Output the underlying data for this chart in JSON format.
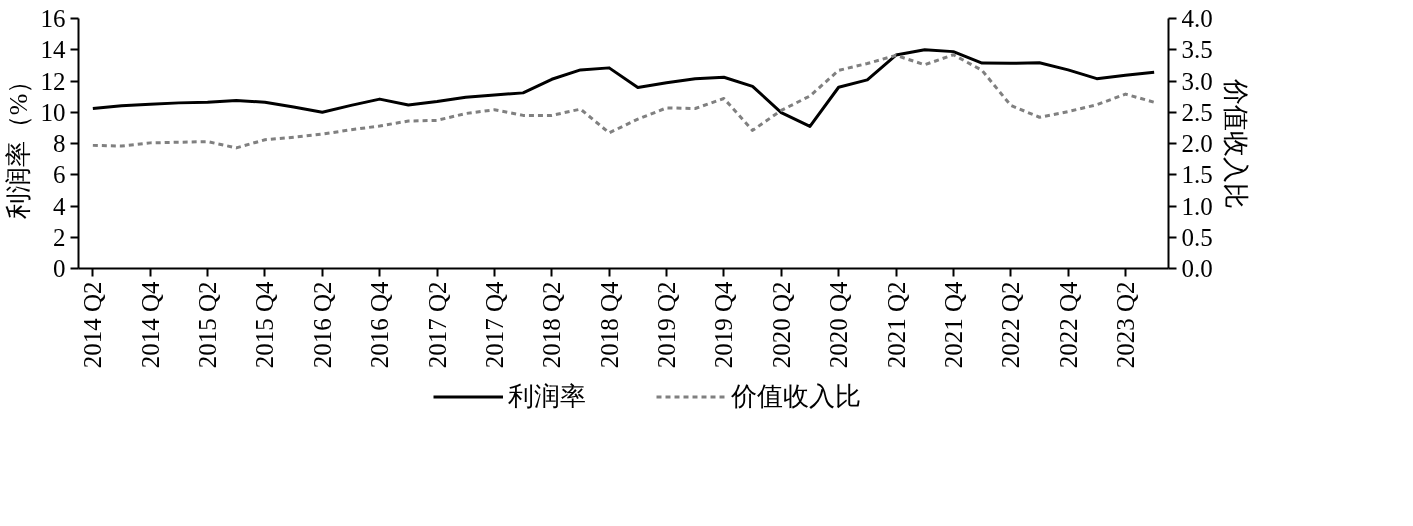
{
  "chart_data": {
    "type": "line",
    "ylabel": "利润率（%）",
    "y2label": "价值收入比",
    "categories": [
      "2014 Q2",
      null,
      "2014 Q4",
      null,
      "2015 Q2",
      null,
      "2015 Q4",
      null,
      "2016 Q2",
      null,
      "2016 Q4",
      null,
      "2017 Q2",
      null,
      "2017 Q4",
      null,
      "2018 Q2",
      null,
      "2018 Q4",
      null,
      "2019 Q2",
      null,
      "2019 Q4",
      null,
      "2020 Q2",
      null,
      "2020 Q4",
      null,
      "2021 Q2",
      null,
      "2021 Q4",
      null,
      "2022 Q2",
      null,
      "2022 Q4",
      null,
      "2023 Q2",
      null
    ],
    "series": [
      {
        "name": "利润率",
        "color": "#000000",
        "line_style": "solid",
        "values": [
          10.24,
          10.42,
          10.51,
          10.6,
          10.64,
          10.75,
          10.64,
          10.33,
          10.0,
          10.44,
          10.84,
          10.47,
          10.69,
          10.96,
          11.11,
          11.24,
          12.11,
          12.71,
          12.84,
          11.58,
          11.89,
          12.15,
          12.24,
          11.66,
          9.97,
          9.09,
          11.6,
          12.07,
          13.66,
          14.0,
          13.88,
          13.15,
          13.13,
          13.17,
          12.71,
          12.15,
          12.37,
          12.56
        ]
      },
      {
        "name": "价值收入比",
        "color": "#808080",
        "line_style": "dashed",
        "axis": "y2",
        "values": [
          1.97,
          1.96,
          2.01,
          2.02,
          2.03,
          1.93,
          2.06,
          2.1,
          2.15,
          2.22,
          2.28,
          2.36,
          2.37,
          2.48,
          2.54,
          2.45,
          2.45,
          2.55,
          2.17,
          2.39,
          2.57,
          2.56,
          2.72,
          2.21,
          2.53,
          2.76,
          3.17,
          3.28,
          3.41,
          3.26,
          3.42,
          3.17,
          2.61,
          2.42,
          2.51,
          2.62,
          2.79,
          2.66
        ]
      }
    ],
    "ylim": [
      0,
      16
    ],
    "yticks": [
      0,
      2,
      4,
      6,
      8,
      10,
      12,
      14,
      16
    ],
    "y2lim": [
      0,
      4
    ],
    "y2ticks": [
      {
        "value": 0,
        "label": "0.0"
      },
      {
        "value": 0.5,
        "label": "0.5"
      },
      {
        "value": 1,
        "label": "1.0"
      },
      {
        "value": 1.5,
        "label": "1.5"
      },
      {
        "value": 2,
        "label": "2.0"
      },
      {
        "value": 2.5,
        "label": "2.5"
      },
      {
        "value": 3,
        "label": "3.0"
      },
      {
        "value": 3.5,
        "label": "3.5"
      },
      {
        "value": 4,
        "label": "4.0"
      }
    ],
    "grid": false,
    "legend": "bottom",
    "marker": "none"
  }
}
